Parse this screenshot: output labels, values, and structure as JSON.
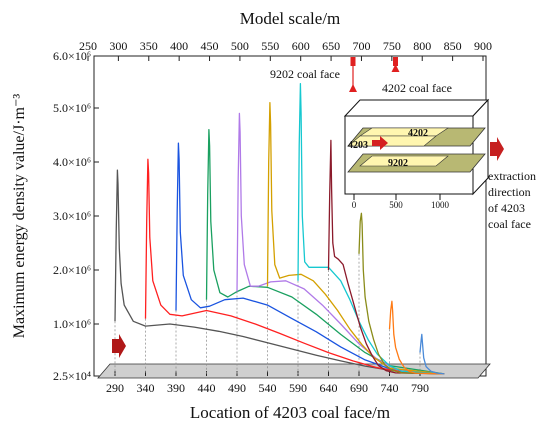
{
  "chart_data": {
    "type": "line",
    "xlabel": "Location of 4203 coal face/m",
    "top_xlabel": "Model scale/m",
    "ylabel": "Maximum energy density value/J·m⁻³",
    "x_ticks": [
      290,
      340,
      390,
      440,
      490,
      540,
      590,
      640,
      690,
      740,
      790
    ],
    "top_ticks": [
      250,
      300,
      350,
      400,
      450,
      500,
      550,
      600,
      650,
      700,
      750,
      800,
      850,
      900
    ],
    "y_ticks": [
      "2.5×10⁴",
      "1.0×10⁶",
      "2.0×10⁶",
      "3.0×10⁶",
      "4.0×10⁶",
      "5.0×10⁶",
      "6.0×10⁶"
    ],
    "ylim": [
      0,
      6000000
    ],
    "series": [
      {
        "color": "#555555",
        "x": [
          290,
          292,
          294,
          295,
          297,
          300,
          305,
          320,
          340,
          380,
          420,
          460,
          500,
          540,
          580,
          620,
          660,
          700,
          740,
          780,
          830
        ],
        "y": [
          1050000,
          2700000,
          3850000,
          3600000,
          2400000,
          1750000,
          1350000,
          1050000,
          960000,
          1000000,
          940000,
          860000,
          760000,
          640000,
          520000,
          400000,
          290000,
          190000,
          110000,
          60000,
          40000
        ]
      },
      {
        "color": "#ff2020",
        "x": [
          340,
          342,
          344,
          345,
          347,
          352,
          365,
          380,
          400,
          440,
          480,
          520,
          560,
          600,
          640,
          680,
          720,
          760,
          830
        ],
        "y": [
          1100000,
          2900000,
          4050000,
          3800000,
          2600000,
          1800000,
          1350000,
          1180000,
          1150000,
          1250000,
          1150000,
          1000000,
          820000,
          630000,
          450000,
          290000,
          160000,
          80000,
          40000
        ]
      },
      {
        "color": "#1a54e0",
        "x": [
          390,
          392,
          394,
          395,
          397,
          402,
          415,
          430,
          445,
          470,
          500,
          540,
          580,
          620,
          660,
          700,
          740,
          830
        ],
        "y": [
          1250000,
          3100000,
          4350000,
          4050000,
          2700000,
          1900000,
          1450000,
          1300000,
          1330000,
          1450000,
          1480000,
          1350000,
          1100000,
          850000,
          560000,
          310000,
          140000,
          40000
        ]
      },
      {
        "color": "#1aa060",
        "x": [
          440,
          442,
          444,
          445,
          447,
          452,
          462,
          475,
          490,
          510,
          540,
          580,
          620,
          660,
          700,
          740,
          830
        ],
        "y": [
          1450000,
          3400000,
          4600000,
          4300000,
          2900000,
          2000000,
          1580000,
          1500000,
          1600000,
          1700000,
          1680000,
          1500000,
          1180000,
          800000,
          450000,
          200000,
          40000
        ]
      },
      {
        "color": "#b07ae8",
        "x": [
          490,
          492,
          494,
          495,
          497,
          502,
          512,
          525,
          545,
          570,
          600,
          630,
          660,
          690,
          720,
          750,
          830
        ],
        "y": [
          1600000,
          3700000,
          4900000,
          4550000,
          3000000,
          2100000,
          1700000,
          1700000,
          1780000,
          1800000,
          1650000,
          1350000,
          1000000,
          620000,
          320000,
          130000,
          40000
        ]
      },
      {
        "color": "#d4a000",
        "x": [
          540,
          542,
          544,
          545,
          547,
          552,
          560,
          575,
          595,
          615,
          635,
          655,
          675,
          695,
          715,
          740,
          830
        ],
        "y": [
          1700000,
          4000000,
          5100000,
          4700000,
          3100000,
          2100000,
          1850000,
          1900000,
          1920000,
          1800000,
          1550000,
          1250000,
          900000,
          600000,
          350000,
          150000,
          40000
        ]
      },
      {
        "color": "#16c8d0",
        "x": [
          590,
          592,
          594,
          595,
          597,
          601,
          608,
          620,
          640,
          660,
          675,
          690,
          705,
          720,
          740,
          760,
          830
        ],
        "y": [
          1800000,
          4300000,
          5450000,
          4900000,
          3000000,
          2150000,
          2050000,
          2050000,
          2050000,
          1800000,
          1450000,
          1050000,
          700000,
          420000,
          200000,
          90000,
          40000
        ]
      },
      {
        "color": "#8b1a2b",
        "x": [
          640,
          642,
          644,
          645,
          647,
          650,
          656,
          664,
          672,
          682,
          692,
          702,
          712,
          722,
          735,
          750,
          830
        ],
        "y": [
          2000000,
          3400000,
          4400000,
          3500000,
          2500000,
          2250000,
          2200000,
          2100000,
          1750000,
          1350000,
          950000,
          620000,
          380000,
          200000,
          100000,
          60000,
          40000
        ]
      },
      {
        "color": "#8a8c1a",
        "x": [
          690,
          692,
          694,
          695,
          697,
          700,
          706,
          714,
          722,
          732,
          744,
          760,
          830
        ],
        "y": [
          2300000,
          2900000,
          3050000,
          2850000,
          2000000,
          1500000,
          1050000,
          700000,
          420000,
          220000,
          110000,
          60000,
          40000
        ]
      },
      {
        "color": "#ff7a14",
        "x": [
          740,
          742,
          744,
          745,
          747,
          750,
          756,
          764,
          772,
          782,
          830
        ],
        "y": [
          900000,
          1250000,
          1420000,
          1250000,
          800000,
          550000,
          320000,
          170000,
          90000,
          55000,
          40000
        ]
      },
      {
        "color": "#4a8ad8",
        "x": [
          790,
          792,
          793,
          794,
          796,
          800,
          808,
          818,
          830
        ],
        "y": [
          450000,
          700000,
          800000,
          650000,
          350000,
          180000,
          90000,
          55000,
          40000
        ]
      }
    ],
    "annotations": {
      "label_9202": "9202 coal face",
      "label_4202": "4202 coal face",
      "extraction_lines": [
        "extraction",
        "direction",
        "of 4203",
        "coal face"
      ],
      "inset_label_4202": "4202",
      "inset_label_4203": "4203",
      "inset_label_9202": "9202",
      "inset_ticks": [
        "0",
        "500",
        "1000"
      ]
    }
  }
}
